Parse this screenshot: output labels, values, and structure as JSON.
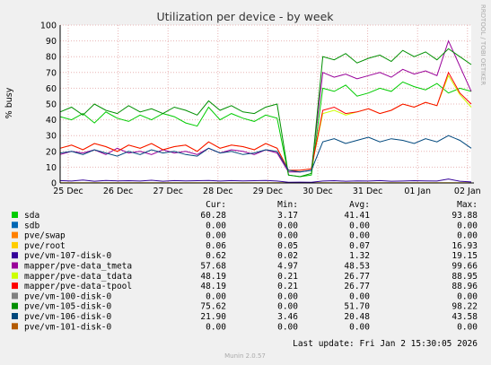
{
  "chart_data": {
    "type": "line",
    "title": "Utilization per device - by week",
    "ylabel": "% busy",
    "side_text": "RRDTOOL / TOBI OETIKER",
    "ylim": [
      0,
      100
    ],
    "yticks": [
      0,
      10,
      20,
      30,
      40,
      50,
      60,
      70,
      80,
      90,
      100
    ],
    "xticks": [
      "25 Dec",
      "26 Dec",
      "27 Dec",
      "28 Dec",
      "29 Dec",
      "30 Dec",
      "31 Dec",
      "01 Jan",
      "02 Jan"
    ],
    "grid": true,
    "legend_headers": [
      "Cur:",
      "Min:",
      "Avg:",
      "Max:"
    ],
    "series": [
      {
        "name": "sda",
        "color": "#00cc00",
        "cur": "60.28",
        "min": "3.17",
        "avg": "41.41",
        "max": "93.88",
        "values": [
          42,
          40,
          44,
          38,
          45,
          41,
          39,
          43,
          40,
          44,
          42,
          38,
          36,
          48,
          40,
          44,
          41,
          39,
          43,
          41,
          5,
          4,
          5,
          60,
          58,
          62,
          55,
          57,
          60,
          58,
          64,
          61,
          59,
          63,
          57,
          60,
          58
        ]
      },
      {
        "name": "sdb",
        "color": "#0066b3",
        "cur": "0.00",
        "min": "0.00",
        "avg": "0.00",
        "max": "0.00",
        "values": [
          0,
          0,
          0,
          0,
          0,
          0,
          0,
          0,
          0,
          0,
          0,
          0,
          0,
          0,
          0,
          0,
          0,
          0,
          0,
          0,
          0,
          0,
          0,
          0,
          0,
          0,
          0,
          0,
          0,
          0,
          0,
          0,
          0,
          0,
          0,
          0,
          0
        ]
      },
      {
        "name": "pve/swap",
        "color": "#ff8000",
        "cur": "0.00",
        "min": "0.00",
        "avg": "0.00",
        "max": "0.00",
        "values": [
          0,
          0,
          0,
          0,
          0,
          0,
          0,
          0,
          0,
          0,
          0,
          0,
          0,
          0,
          0,
          0,
          0,
          0,
          0,
          0,
          0,
          0,
          0,
          0,
          0,
          0,
          0,
          0,
          0,
          0,
          0,
          0,
          0,
          0,
          0,
          0,
          0
        ]
      },
      {
        "name": "pve/root",
        "color": "#ffcc00",
        "cur": "0.06",
        "min": "0.05",
        "avg": "0.07",
        "max": "16.93",
        "values": [
          0.1,
          0.1,
          0.1,
          0.1,
          0.1,
          0.1,
          0.1,
          0.1,
          0.1,
          0.1,
          0.1,
          0.1,
          0.1,
          0.1,
          0.1,
          0.1,
          0.1,
          0.1,
          0.1,
          0.1,
          0.1,
          0.1,
          0.1,
          0.1,
          0.1,
          0.1,
          0.1,
          0.1,
          0.1,
          0.1,
          0.1,
          0.1,
          0.1,
          0.1,
          0.1,
          0.1,
          0.1
        ]
      },
      {
        "name": "pve/vm-107-disk-0",
        "color": "#330099",
        "cur": "0.62",
        "min": "0.02",
        "avg": "1.32",
        "max": "19.15",
        "values": [
          1.5,
          1.2,
          1.8,
          1.1,
          1.6,
          1.3,
          1.4,
          1.2,
          1.7,
          1.1,
          1.5,
          1.3,
          1.4,
          1.6,
          1.2,
          1.5,
          1.3,
          1.4,
          1.6,
          1.2,
          0.4,
          0.5,
          0.4,
          1.2,
          1.4,
          1.1,
          1.3,
          1.2,
          1.5,
          1.1,
          1.2,
          1.4,
          1.3,
          1.2,
          2.5,
          1.1,
          0.6
        ]
      },
      {
        "name": "mapper/pve-data_tmeta",
        "color": "#990099",
        "cur": "57.68",
        "min": "4.97",
        "avg": "48.53",
        "max": "99.66",
        "values": [
          18,
          20,
          19,
          21,
          18,
          22,
          19,
          20,
          18,
          21,
          19,
          20,
          18,
          22,
          19,
          21,
          20,
          18,
          21,
          19,
          7,
          7,
          8,
          70,
          67,
          69,
          66,
          68,
          70,
          67,
          72,
          69,
          71,
          68,
          90,
          74,
          58
        ]
      },
      {
        "name": "mapper/pve-data_tdata",
        "color": "#ccff00",
        "cur": "48.19",
        "min": "0.21",
        "avg": "26.77",
        "max": "88.95",
        "values": [
          22,
          24,
          21,
          25,
          23,
          20,
          24,
          22,
          25,
          21,
          23,
          24,
          20,
          26,
          22,
          24,
          23,
          21,
          25,
          22,
          8,
          8,
          9,
          44,
          46,
          43,
          45,
          47,
          44,
          46,
          50,
          48,
          51,
          49,
          68,
          56,
          48
        ]
      },
      {
        "name": "mapper/pve-data-tpool",
        "color": "#ff0000",
        "cur": "48.19",
        "min": "0.21",
        "avg": "26.77",
        "max": "88.96",
        "values": [
          22,
          24,
          21,
          25,
          23,
          20,
          24,
          22,
          25,
          21,
          23,
          24,
          20,
          26,
          22,
          24,
          23,
          21,
          25,
          22,
          8,
          8,
          9,
          46,
          48,
          44,
          45,
          47,
          44,
          46,
          50,
          48,
          51,
          49,
          70,
          57,
          50
        ]
      },
      {
        "name": "pve/vm-100-disk-0",
        "color": "#808080",
        "cur": "0.00",
        "min": "0.00",
        "avg": "0.00",
        "max": "0.00",
        "values": [
          0,
          0,
          0,
          0,
          0,
          0,
          0,
          0,
          0,
          0,
          0,
          0,
          0,
          0,
          0,
          0,
          0,
          0,
          0,
          0,
          0,
          0,
          0,
          0,
          0,
          0,
          0,
          0,
          0,
          0,
          0,
          0,
          0,
          0,
          0,
          0,
          0
        ]
      },
      {
        "name": "pve/vm-105-disk-0",
        "color": "#008f00",
        "cur": "75.62",
        "min": "0.00",
        "avg": "51.70",
        "max": "98.22",
        "values": [
          45,
          48,
          43,
          50,
          46,
          44,
          49,
          45,
          47,
          44,
          48,
          46,
          43,
          52,
          46,
          49,
          45,
          44,
          48,
          50,
          5,
          4,
          6,
          80,
          78,
          82,
          76,
          79,
          81,
          77,
          84,
          80,
          83,
          78,
          85,
          80,
          75
        ]
      },
      {
        "name": "pve/vm-106-disk-0",
        "color": "#00487d",
        "cur": "21.90",
        "min": "3.46",
        "avg": "20.48",
        "max": "43.58",
        "values": [
          19,
          20,
          18,
          21,
          19,
          17,
          20,
          18,
          21,
          19,
          20,
          18,
          17,
          22,
          19,
          20,
          18,
          19,
          21,
          20,
          8,
          7,
          8,
          26,
          28,
          25,
          27,
          29,
          26,
          28,
          27,
          25,
          28,
          26,
          30,
          27,
          22
        ]
      },
      {
        "name": "pve/vm-101-disk-0",
        "color": "#b35a00",
        "cur": "0.00",
        "min": "0.00",
        "avg": "0.00",
        "max": "0.00",
        "values": [
          0,
          0,
          0,
          0,
          0,
          0,
          0,
          0,
          0,
          0,
          0,
          0,
          0,
          0,
          0,
          0,
          0,
          0,
          0,
          0,
          0,
          0,
          0,
          0,
          0,
          0,
          0,
          0,
          0,
          0,
          0,
          0,
          0,
          0,
          0,
          0,
          0
        ]
      }
    ],
    "last_update": "Last update:  Fri Jan  2 15:30:05 2026",
    "footer": "Munin 2.0.57"
  }
}
